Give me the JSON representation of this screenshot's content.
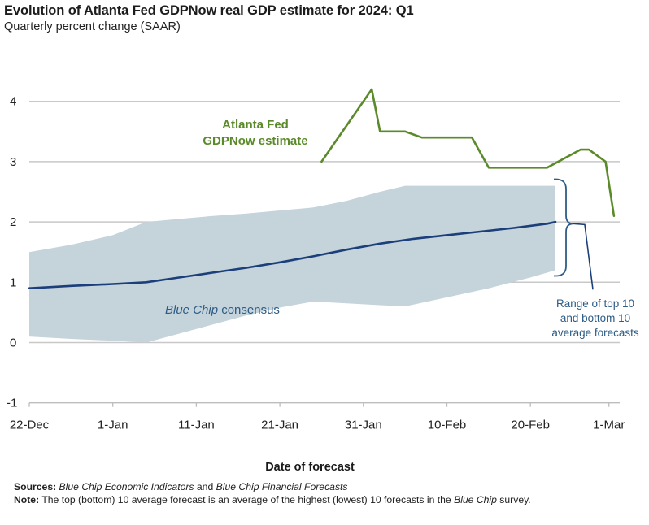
{
  "title": "Evolution of Atlanta Fed GDPNow real GDP estimate for 2024: Q1",
  "subtitle": "Quarterly percent change (SAAR)",
  "chart_data": {
    "type": "line",
    "title": "Evolution of Atlanta Fed GDPNow real GDP estimate for 2024: Q1",
    "subtitle": "Quarterly percent change (SAAR)",
    "xlabel": "Date of forecast",
    "ylabel": "",
    "ylim": [
      -1,
      4
    ],
    "yticks": [
      -1,
      0,
      1,
      2,
      3,
      4
    ],
    "x_start": "22-Dec",
    "x_unit": "days since 22-Dec",
    "xlim": [
      0,
      70
    ],
    "xticks": [
      {
        "day": 0,
        "label": "22-Dec"
      },
      {
        "day": 10,
        "label": "1-Jan"
      },
      {
        "day": 20,
        "label": "11-Jan"
      },
      {
        "day": 30,
        "label": "21-Jan"
      },
      {
        "day": 40,
        "label": "31-Jan"
      },
      {
        "day": 50,
        "label": "10-Feb"
      },
      {
        "day": 60,
        "label": "20-Feb"
      },
      {
        "day": 69,
        "label": "1-Mar"
      }
    ],
    "grid": true,
    "colors": {
      "gdpnow": "#5b8a2a",
      "consensus": "#1b3f7a",
      "band": "#c5d3db",
      "annotation": "#2d5c86",
      "grid": "#c8c8c8"
    },
    "series": [
      {
        "name": "Atlanta Fed GDPNow estimate",
        "label_lines": [
          "Atlanta Fed",
          "GDPNow estimate"
        ],
        "x": [
          35,
          41,
          42,
          45,
          47,
          53,
          55,
          62,
          66,
          67,
          69,
          70
        ],
        "values": [
          3.0,
          4.2,
          3.5,
          3.5,
          3.4,
          3.4,
          2.9,
          2.9,
          3.2,
          3.2,
          3.0,
          2.1
        ]
      },
      {
        "name": "Blue Chip consensus",
        "label_italic": "Blue Chip",
        "label_rest": " consensus",
        "x": [
          0,
          5,
          10,
          14,
          18,
          22,
          26,
          30,
          34,
          38,
          42,
          46,
          50,
          54,
          58,
          62,
          63
        ],
        "values": [
          0.9,
          0.94,
          0.97,
          1.0,
          1.08,
          1.16,
          1.24,
          1.33,
          1.43,
          1.54,
          1.64,
          1.72,
          1.78,
          1.84,
          1.9,
          1.97,
          2.0
        ]
      }
    ],
    "band": {
      "name": "Range of top 10 and bottom 10 average forecasts",
      "label_lines": [
        "Range of top 10",
        "and bottom 10",
        "average forecasts"
      ],
      "x": [
        0,
        5,
        10,
        14,
        18,
        22,
        26,
        30,
        34,
        38,
        42,
        45,
        50,
        55,
        60,
        63
      ],
      "upper": [
        1.5,
        1.62,
        1.78,
        2.0,
        2.05,
        2.1,
        2.14,
        2.19,
        2.24,
        2.35,
        2.5,
        2.6,
        2.6,
        2.6,
        2.6,
        2.6
      ],
      "lower": [
        0.1,
        0.06,
        0.03,
        0.0,
        0.15,
        0.3,
        0.45,
        0.58,
        0.68,
        0.65,
        0.62,
        0.6,
        0.75,
        0.9,
        1.08,
        1.2
      ]
    }
  },
  "footer": {
    "sources_label": "Sources:",
    "sources_italic_1": "Blue Chip Economic Indicators",
    "sources_and": " and ",
    "sources_italic_2": "Blue Chip Financial Forecasts",
    "note_label": "Note:",
    "note_text": " The top (bottom) 10 average forecast is an average of the highest (lowest) 10 forecasts in the ",
    "note_italic": "Blue Chip",
    "note_end": " survey."
  }
}
